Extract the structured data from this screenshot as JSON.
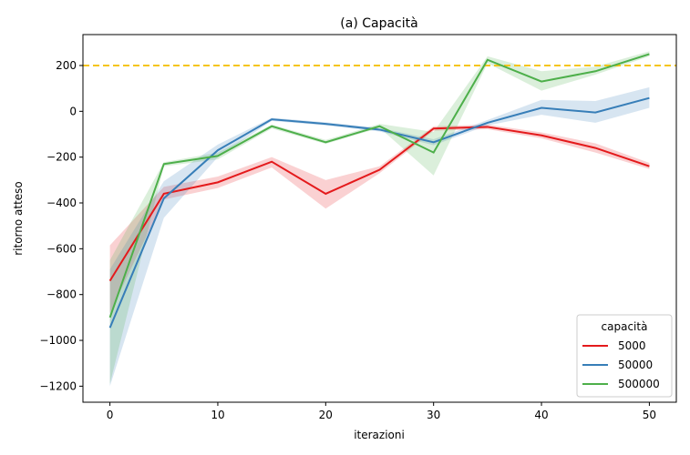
{
  "chart_data": {
    "type": "line",
    "title": "(a) Capacità",
    "xlabel": "iterazioni",
    "ylabel": "ritorno atteso",
    "xlim": [
      -2.5,
      52.5
    ],
    "ylim": [
      -1270,
      335
    ],
    "xticks": [
      0,
      10,
      20,
      30,
      40,
      50
    ],
    "yticks": [
      -1200,
      -1000,
      -800,
      -600,
      -400,
      -200,
      0,
      200
    ],
    "xtick_labels": [
      "0",
      "10",
      "20",
      "30",
      "40",
      "50"
    ],
    "ytick_labels": [
      "−1200",
      "−1000",
      "−800",
      "−600",
      "−400",
      "−200",
      "0",
      "200"
    ],
    "reference_line": {
      "y": 200,
      "color": "#f5c518",
      "style": "dashed"
    },
    "legend": {
      "title": "capacità",
      "position": "bottom-right"
    },
    "x": [
      0,
      5,
      10,
      15,
      20,
      25,
      30,
      35,
      40,
      45,
      50
    ],
    "series": [
      {
        "name": "5000",
        "color": "#e41a1c",
        "values": [
          -740,
          -360,
          -310,
          -220,
          -360,
          -255,
          -75,
          -68,
          -105,
          -160,
          -240
        ],
        "lower": [
          -880,
          -385,
          -335,
          -245,
          -425,
          -270,
          -85,
          -78,
          -118,
          -180,
          -252
        ],
        "upper": [
          -585,
          -330,
          -285,
          -200,
          -300,
          -240,
          -65,
          -58,
          -92,
          -140,
          -225
        ]
      },
      {
        "name": "50000",
        "color": "#377eb8",
        "values": [
          -945,
          -380,
          -170,
          -35,
          -55,
          -80,
          -135,
          -50,
          15,
          -5,
          58
        ],
        "lower": [
          -1200,
          -465,
          -200,
          -42,
          -62,
          -88,
          -148,
          -62,
          -15,
          -50,
          15
        ],
        "upper": [
          -690,
          -305,
          -145,
          -28,
          -48,
          -72,
          -122,
          -38,
          50,
          45,
          105
        ]
      },
      {
        "name": "500000",
        "color": "#4daf4a",
        "values": [
          -900,
          -230,
          -195,
          -65,
          -135,
          -65,
          -180,
          225,
          130,
          175,
          250
        ],
        "lower": [
          -1190,
          -240,
          -210,
          -75,
          -142,
          -72,
          -280,
          210,
          90,
          160,
          240
        ],
        "upper": [
          -650,
          -222,
          -180,
          -58,
          -125,
          -55,
          -90,
          240,
          175,
          195,
          262
        ]
      }
    ]
  }
}
